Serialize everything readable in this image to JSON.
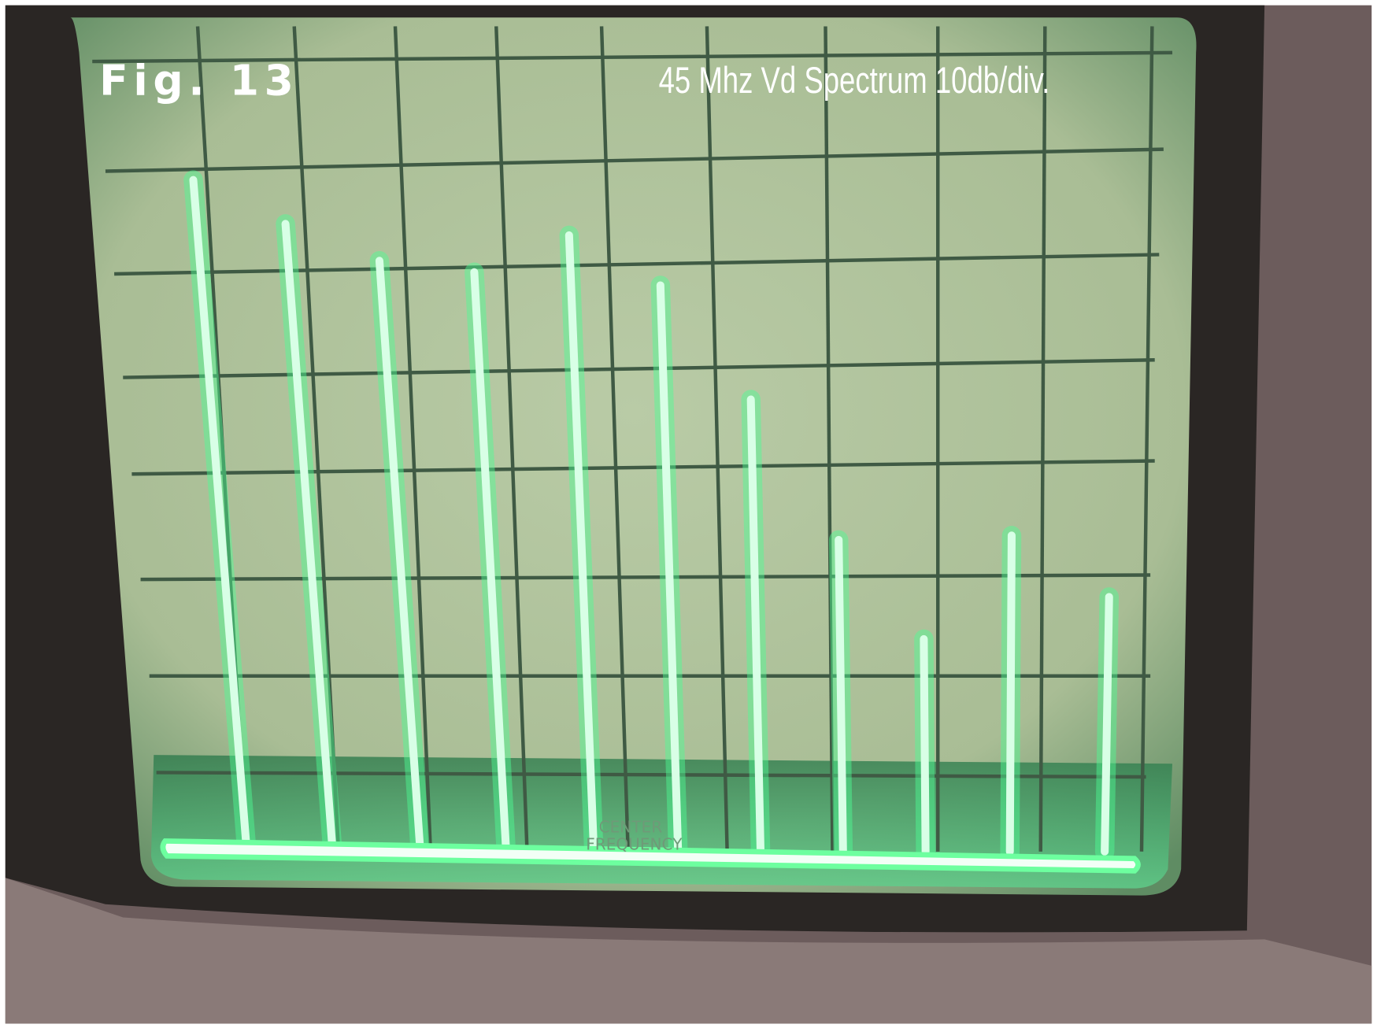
{
  "figure_label": "Fig. 13",
  "caption": "45 Mhz Vd Spectrum 10db/div.",
  "graticule": {
    "center_label": [
      "CENTER",
      "FREQUENCY"
    ]
  }
}
